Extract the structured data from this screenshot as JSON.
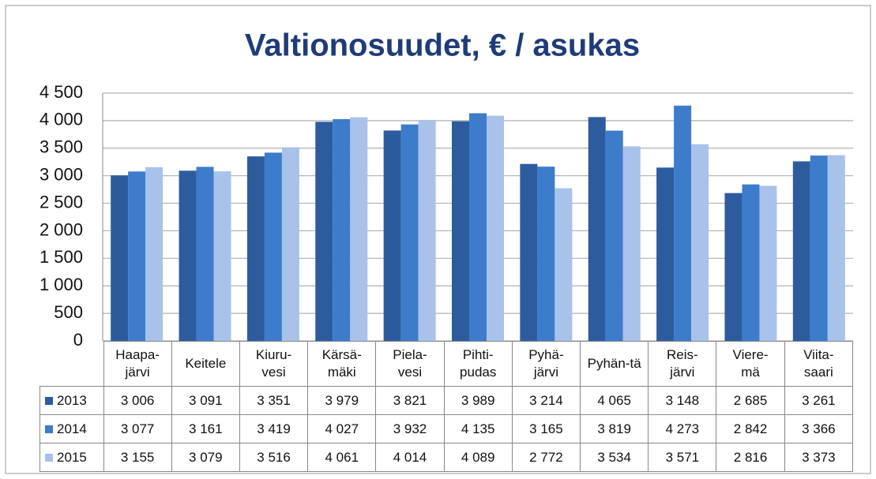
{
  "chart_data": {
    "type": "bar",
    "title": "Valtionosuudet, € / asukas",
    "categories": [
      "Haapa-\njärvi",
      "Keitele",
      "Kiuru-\nvesi",
      "Kärsä-\nmäki",
      "Piela-\nvesi",
      "Pihti-\npudas",
      "Pyhä-\njärvi",
      "Pyhän-tä",
      "Reis-\njärvi",
      "Viere-\nmä",
      "Viita-\nsaari"
    ],
    "series": [
      {
        "name": "2013",
        "color": "#2d5c9e",
        "values": [
          3006,
          3091,
          3351,
          3979,
          3821,
          3989,
          3214,
          4065,
          3148,
          2685,
          3261
        ],
        "value_labels": [
          "3 006",
          "3 091",
          "3 351",
          "3 979",
          "3 821",
          "3 989",
          "3 214",
          "4 065",
          "3 148",
          "2 685",
          "3 261"
        ]
      },
      {
        "name": "2014",
        "color": "#3d7cca",
        "values": [
          3077,
          3161,
          3419,
          4027,
          3932,
          4135,
          3165,
          3819,
          4273,
          2842,
          3366
        ],
        "value_labels": [
          "3 077",
          "3 161",
          "3 419",
          "4 027",
          "3 932",
          "4 135",
          "3 165",
          "3 819",
          "4 273",
          "2 842",
          "3 366"
        ]
      },
      {
        "name": "2015",
        "color": "#a8c2ea",
        "values": [
          3155,
          3079,
          3516,
          4061,
          4014,
          4089,
          2772,
          3534,
          3571,
          2816,
          3373
        ],
        "value_labels": [
          "3 155",
          "3 079",
          "3 516",
          "4 061",
          "4 014",
          "4 089",
          "2 772",
          "3 534",
          "3 571",
          "2 816",
          "3 373"
        ]
      }
    ],
    "ylim": [
      0,
      4500
    ],
    "yticks": [
      0,
      500,
      {
        "value": 1000,
        "label": "1 000"
      },
      {
        "value": 1500,
        "label": "1 500"
      },
      {
        "value": 2000,
        "label": "2 000"
      },
      {
        "value": 2500,
        "label": "2 500"
      },
      {
        "value": 3000,
        "label": "3 000"
      },
      {
        "value": 3500,
        "label": "3 500"
      },
      {
        "value": 4000,
        "label": "4 000"
      },
      {
        "value": 4500,
        "label": "4 500"
      }
    ],
    "grid": true
  }
}
